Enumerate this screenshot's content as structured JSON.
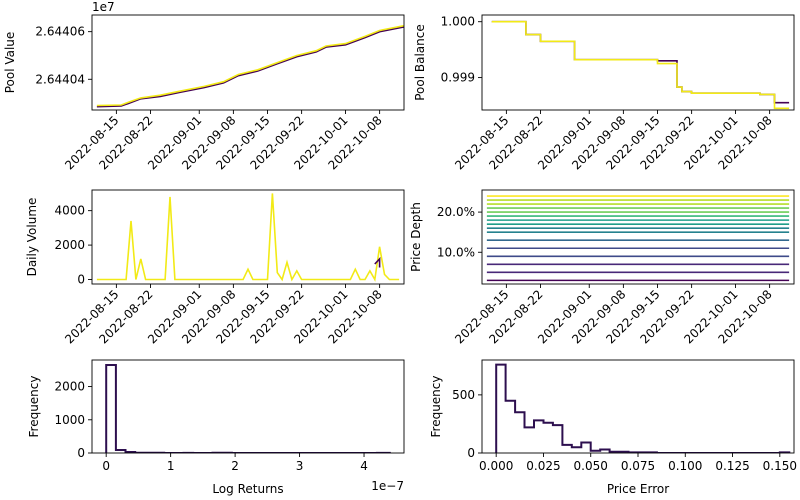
{
  "palette": {
    "viridis": [
      "#440154",
      "#482878",
      "#3e4a89",
      "#31688e",
      "#26828e",
      "#1f9e89",
      "#35b779",
      "#6ece58",
      "#b5de2b",
      "#fde725"
    ],
    "yellow": "#f2ea16",
    "dark": "#2d0f4f"
  },
  "chart_data": [
    {
      "id": "pool-value",
      "type": "line",
      "ylabel": "Pool Value",
      "offset_text": "1e7",
      "x_type": "date",
      "x_range": [
        "2022-08-10",
        "2022-10-13"
      ],
      "xticks": [
        "2022-08-15",
        "2022-08-22",
        "2022-09-01",
        "2022-09-08",
        "2022-09-15",
        "2022-09-22",
        "2022-10-01",
        "2022-10-08"
      ],
      "ylim": [
        26440271,
        26440670
      ],
      "yticks": [
        {
          "value": 26440400,
          "label": "2.64404"
        },
        {
          "value": 26440600,
          "label": "2.64406"
        }
      ],
      "series": [
        {
          "color": "#440154",
          "x": [
            "2022-08-11",
            "2022-08-16",
            "2022-08-17",
            "2022-08-20",
            "2022-08-24",
            "2022-08-28",
            "2022-09-02",
            "2022-09-06",
            "2022-09-09",
            "2022-09-13",
            "2022-09-17",
            "2022-09-21",
            "2022-09-25",
            "2022-09-27",
            "2022-10-01",
            "2022-10-05",
            "2022-10-08",
            "2022-10-13"
          ],
          "y": [
            26440285,
            26440288,
            26440295,
            26440318,
            26440328,
            26440345,
            26440365,
            26440385,
            26440415,
            26440435,
            26440465,
            26440495,
            26440515,
            26440535,
            26440545,
            26440575,
            26440600,
            26440620
          ]
        },
        {
          "color": "#f2ea16",
          "x": [
            "2022-08-11",
            "2022-08-16",
            "2022-08-17",
            "2022-08-20",
            "2022-08-24",
            "2022-08-28",
            "2022-09-02",
            "2022-09-06",
            "2022-09-09",
            "2022-09-13",
            "2022-09-17",
            "2022-09-21",
            "2022-09-25",
            "2022-09-27",
            "2022-10-01",
            "2022-10-05",
            "2022-10-08",
            "2022-10-13"
          ],
          "y": [
            26440290,
            26440292,
            26440300,
            26440322,
            26440333,
            26440350,
            26440370,
            26440390,
            26440420,
            26440440,
            26440470,
            26440500,
            26440520,
            26440540,
            26440550,
            26440580,
            26440605,
            26440625
          ]
        }
      ]
    },
    {
      "id": "pool-balance",
      "type": "line",
      "ylabel": "Pool Balance",
      "x_type": "date",
      "x_range": [
        "2022-08-10",
        "2022-10-13"
      ],
      "xticks": [
        "2022-08-15",
        "2022-08-22",
        "2022-09-01",
        "2022-09-08",
        "2022-09-15",
        "2022-09-22",
        "2022-10-01",
        "2022-10-08"
      ],
      "ylim": [
        0.99842,
        1.00012
      ],
      "yticks": [
        {
          "value": 0.999,
          "label": "0.999"
        },
        {
          "value": 1.0,
          "label": "1.000"
        }
      ],
      "series": [
        {
          "color": "#440154",
          "step": true,
          "x": [
            "2022-08-12",
            "2022-08-19",
            "2022-08-22",
            "2022-08-28",
            "2022-08-29",
            "2022-09-04",
            "2022-09-15",
            "2022-09-19",
            "2022-09-20",
            "2022-09-22",
            "2022-09-24",
            "2022-10-06",
            "2022-10-09",
            "2022-10-12"
          ],
          "y": [
            1.0,
            0.99977,
            0.99965,
            0.99965,
            0.99932,
            0.99932,
            0.9993,
            0.99883,
            0.99875,
            0.99872,
            0.99872,
            0.9987,
            0.99855,
            0.99855
          ]
        },
        {
          "color": "#f2ea16",
          "step": true,
          "x": [
            "2022-08-12",
            "2022-08-19",
            "2022-08-22",
            "2022-08-28",
            "2022-08-29",
            "2022-09-04",
            "2022-09-15",
            "2022-09-19",
            "2022-09-20",
            "2022-09-22",
            "2022-09-24",
            "2022-10-06",
            "2022-10-09",
            "2022-10-12"
          ],
          "y": [
            1.0,
            0.99977,
            0.99965,
            0.99965,
            0.99932,
            0.99932,
            0.99925,
            0.99883,
            0.99875,
            0.99872,
            0.99872,
            0.9987,
            0.99845,
            0.99845
          ]
        }
      ]
    },
    {
      "id": "daily-volume",
      "type": "line",
      "ylabel": "Daily Volume",
      "x_type": "date",
      "x_range": [
        "2022-08-10",
        "2022-10-13"
      ],
      "xticks": [
        "2022-08-15",
        "2022-08-22",
        "2022-09-01",
        "2022-09-08",
        "2022-09-15",
        "2022-09-22",
        "2022-10-01",
        "2022-10-08"
      ],
      "ylim": [
        -260,
        5200
      ],
      "yticks": [
        {
          "value": 0,
          "label": "0"
        },
        {
          "value": 2000,
          "label": "2000"
        },
        {
          "value": 4000,
          "label": "4000"
        }
      ],
      "series": [
        {
          "color": "#f2ea16",
          "x": [
            "2022-08-11",
            "2022-08-17",
            "2022-08-18",
            "2022-08-19",
            "2022-08-20",
            "2022-08-21",
            "2022-08-22",
            "2022-08-25",
            "2022-08-26",
            "2022-08-27",
            "2022-09-10",
            "2022-09-11",
            "2022-09-12",
            "2022-09-15",
            "2022-09-16",
            "2022-09-17",
            "2022-09-18",
            "2022-09-19",
            "2022-09-20",
            "2022-09-21",
            "2022-09-22",
            "2022-09-24",
            "2022-10-02",
            "2022-10-03",
            "2022-10-04",
            "2022-10-05",
            "2022-10-06",
            "2022-10-07",
            "2022-10-08",
            "2022-10-09",
            "2022-10-10",
            "2022-10-12"
          ],
          "y": [
            0,
            0,
            3400,
            0,
            1200,
            0,
            0,
            0,
            4800,
            0,
            0,
            600,
            0,
            0,
            5000,
            400,
            0,
            1000,
            0,
            500,
            0,
            0,
            0,
            600,
            0,
            0,
            500,
            0,
            1900,
            300,
            0,
            0
          ]
        },
        {
          "color": "#440154",
          "x": [
            "2022-10-07",
            "2022-10-08",
            "2022-10-08"
          ],
          "y": [
            900,
            1200,
            700
          ]
        }
      ]
    },
    {
      "id": "price-depth",
      "type": "line",
      "ylabel": "Price Depth",
      "x_type": "date",
      "x_range": [
        "2022-08-10",
        "2022-10-13"
      ],
      "xticks": [
        "2022-08-15",
        "2022-08-22",
        "2022-09-01",
        "2022-09-08",
        "2022-09-15",
        "2022-09-22",
        "2022-10-01",
        "2022-10-08"
      ],
      "ylim": [
        0.021,
        0.255
      ],
      "yticks": [
        {
          "value": 0.1,
          "label": "10.0%"
        },
        {
          "value": 0.2,
          "label": "20.0%"
        }
      ],
      "x_span": [
        "2022-08-11",
        "2022-10-12"
      ],
      "levels": [
        0.03,
        0.05,
        0.07,
        0.09,
        0.11,
        0.13,
        0.15,
        0.16,
        0.17,
        0.18,
        0.19,
        0.2,
        0.21,
        0.22,
        0.23,
        0.24
      ]
    },
    {
      "id": "log-returns-hist",
      "type": "bar",
      "histogram": true,
      "ylabel": "Frequency",
      "xlabel": "Log Returns",
      "offset_text": "1e−7",
      "xlim": [
        -0.22,
        4.62
      ],
      "ylim": [
        0,
        2800
      ],
      "xticks": [
        {
          "value": 0,
          "label": "0"
        },
        {
          "value": 1,
          "label": "1"
        },
        {
          "value": 2,
          "label": "2"
        },
        {
          "value": 3,
          "label": "3"
        },
        {
          "value": 4,
          "label": "4"
        }
      ],
      "yticks": [
        {
          "value": 0,
          "label": "0"
        },
        {
          "value": 1000,
          "label": "1000"
        },
        {
          "value": 2000,
          "label": "2000"
        }
      ],
      "bin_edges": [
        0,
        0.15,
        0.3,
        0.45,
        0.6,
        0.75,
        0.9,
        1.05,
        1.2,
        1.35,
        1.5,
        1.65,
        1.8,
        1.95,
        2.1,
        2.25,
        2.4,
        2.55,
        2.7,
        2.85,
        3.0,
        3.15,
        3.3,
        3.45,
        3.6,
        3.75,
        3.9,
        4.05,
        4.2,
        4.4
      ],
      "counts": [
        2650,
        90,
        30,
        10,
        5,
        5,
        0,
        0,
        3,
        0,
        0,
        10,
        10,
        0,
        0,
        0,
        0,
        0,
        0,
        0,
        0,
        0,
        0,
        0,
        0,
        0,
        0,
        0,
        2
      ],
      "color": "#2d0f4f"
    },
    {
      "id": "price-error-hist",
      "type": "bar",
      "histogram": true,
      "ylabel": "Frequency",
      "xlabel": "Price Error",
      "xlim": [
        -0.0075,
        0.1575
      ],
      "ylim": [
        0,
        800
      ],
      "xticks": [
        {
          "value": 0,
          "label": "0.000"
        },
        {
          "value": 0.025,
          "label": "0.025"
        },
        {
          "value": 0.05,
          "label": "0.050"
        },
        {
          "value": 0.075,
          "label": "0.075"
        },
        {
          "value": 0.1,
          "label": "0.100"
        },
        {
          "value": 0.125,
          "label": "0.125"
        },
        {
          "value": 0.15,
          "label": "0.150"
        }
      ],
      "yticks": [
        {
          "value": 0,
          "label": "0"
        },
        {
          "value": 500,
          "label": "500"
        }
      ],
      "bin_edges": [
        0,
        0.005,
        0.01,
        0.015,
        0.02,
        0.025,
        0.03,
        0.035,
        0.04,
        0.045,
        0.05,
        0.055,
        0.06,
        0.065,
        0.07,
        0.075,
        0.08,
        0.085,
        0.09,
        0.095,
        0.1,
        0.105,
        0.11,
        0.115,
        0.12,
        0.125,
        0.13,
        0.135,
        0.14,
        0.145,
        0.15,
        0.155
      ],
      "counts": [
        760,
        450,
        350,
        220,
        280,
        260,
        240,
        70,
        50,
        90,
        20,
        30,
        10,
        10,
        5,
        5,
        5,
        0,
        0,
        0,
        0,
        0,
        0,
        0,
        0,
        0,
        0,
        0,
        0,
        0,
        5
      ],
      "color": "#2d0f4f"
    }
  ]
}
